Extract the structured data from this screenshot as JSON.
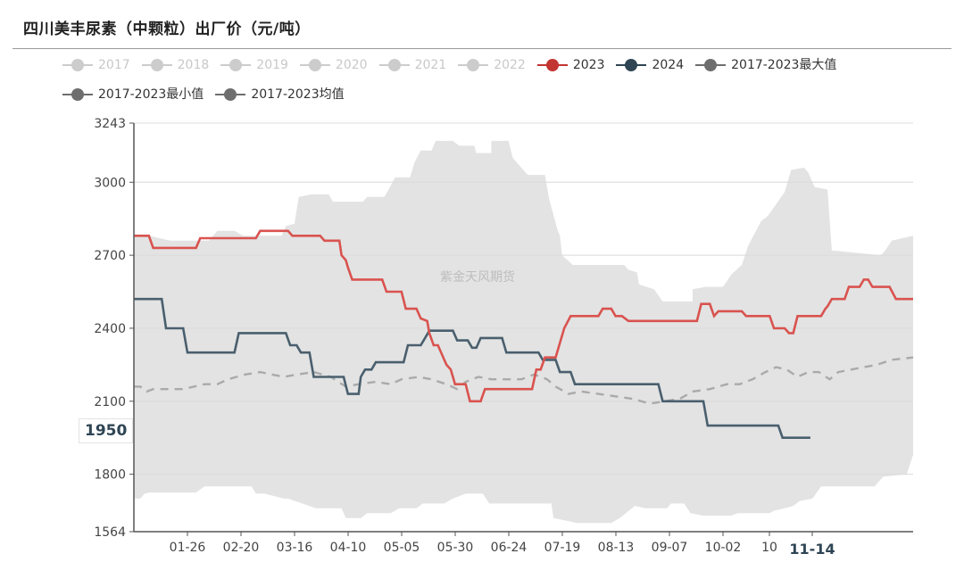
{
  "title": "四川美丰尿素（中颗粒）出厂价（元/吨）",
  "watermark": "紫金天风期货",
  "legend": [
    {
      "label": "2017",
      "color": "#cccccc",
      "active": false
    },
    {
      "label": "2018",
      "color": "#cccccc",
      "active": false
    },
    {
      "label": "2019",
      "color": "#cccccc",
      "active": false
    },
    {
      "label": "2020",
      "color": "#cccccc",
      "active": false
    },
    {
      "label": "2021",
      "color": "#cccccc",
      "active": false
    },
    {
      "label": "2022",
      "color": "#cccccc",
      "active": false
    },
    {
      "label": "2023",
      "color": "#c23531",
      "active": true
    },
    {
      "label": "2024",
      "color": "#2f4554",
      "active": true
    },
    {
      "label": "2017-2023最大值",
      "color": "#6e6e6e",
      "active": true
    },
    {
      "label": "2017-2023最小值",
      "color": "#6e6e6e",
      "active": true
    },
    {
      "label": "2017-2023均值",
      "color": "#6e6e6e",
      "active": true
    }
  ],
  "axis_pointer": {
    "y_label": "1950",
    "x_label": "11-14"
  },
  "chart_data": {
    "type": "line",
    "title": "四川美丰尿素（中颗粒）出厂价（元/吨）",
    "xlabel": "",
    "ylabel": "",
    "ylim": [
      1564,
      3243
    ],
    "yticks": [
      1564,
      1800,
      2100,
      2400,
      2700,
      3000,
      3243
    ],
    "xticks": [
      "01-26",
      "02-20",
      "03-16",
      "04-10",
      "05-05",
      "05-30",
      "06-24",
      "07-19",
      "08-13",
      "09-07",
      "10-02",
      "10",
      "11-14"
    ],
    "x_domain_days": [
      1,
      365
    ],
    "grid": true,
    "legend_position": "top",
    "colors": {
      "2023": "#d9534f",
      "2024": "#4a5f6e",
      "avg": "#aaaaaa",
      "band": "#e3e3e3"
    },
    "series": [
      {
        "name": "2023",
        "points": [
          [
            1,
            2780
          ],
          [
            8,
            2780
          ],
          [
            10,
            2730
          ],
          [
            30,
            2730
          ],
          [
            32,
            2770
          ],
          [
            58,
            2770
          ],
          [
            60,
            2800
          ],
          [
            73,
            2800
          ],
          [
            75,
            2780
          ],
          [
            88,
            2780
          ],
          [
            90,
            2760
          ],
          [
            97,
            2760
          ],
          [
            98,
            2700
          ],
          [
            100,
            2680
          ],
          [
            101,
            2650
          ],
          [
            103,
            2600
          ],
          [
            117,
            2600
          ],
          [
            119,
            2550
          ],
          [
            126,
            2550
          ],
          [
            128,
            2480
          ],
          [
            133,
            2480
          ],
          [
            135,
            2440
          ],
          [
            138,
            2430
          ],
          [
            139,
            2380
          ],
          [
            141,
            2330
          ],
          [
            143,
            2330
          ],
          [
            145,
            2290
          ],
          [
            147,
            2250
          ],
          [
            149,
            2230
          ],
          [
            151,
            2170
          ],
          [
            156,
            2170
          ],
          [
            158,
            2100
          ],
          [
            163,
            2100
          ],
          [
            165,
            2150
          ],
          [
            187,
            2150
          ],
          [
            189,
            2230
          ],
          [
            191,
            2230
          ],
          [
            193,
            2280
          ],
          [
            198,
            2280
          ],
          [
            202,
            2400
          ],
          [
            205,
            2450
          ],
          [
            218,
            2450
          ],
          [
            220,
            2480
          ],
          [
            224,
            2480
          ],
          [
            226,
            2450
          ],
          [
            229,
            2450
          ],
          [
            232,
            2430
          ],
          [
            264,
            2430
          ],
          [
            266,
            2500
          ],
          [
            270,
            2500
          ],
          [
            272,
            2450
          ],
          [
            274,
            2470
          ],
          [
            285,
            2470
          ],
          [
            287,
            2450
          ],
          [
            298,
            2450
          ],
          [
            300,
            2400
          ],
          [
            305,
            2400
          ],
          [
            307,
            2380
          ],
          [
            309,
            2380
          ],
          [
            311,
            2450
          ],
          [
            322,
            2450
          ],
          [
            324,
            2480
          ],
          [
            325,
            2490
          ],
          [
            327,
            2520
          ],
          [
            333,
            2520
          ],
          [
            335,
            2570
          ],
          [
            340,
            2570
          ],
          [
            342,
            2600
          ],
          [
            344,
            2600
          ],
          [
            346,
            2570
          ],
          [
            354,
            2570
          ],
          [
            357,
            2520
          ],
          [
            365,
            2520
          ]
        ]
      },
      {
        "name": "2024",
        "points": [
          [
            1,
            2520
          ],
          [
            14,
            2520
          ],
          [
            16,
            2400
          ],
          [
            24,
            2400
          ],
          [
            26,
            2300
          ],
          [
            48,
            2300
          ],
          [
            50,
            2380
          ],
          [
            72,
            2380
          ],
          [
            74,
            2330
          ],
          [
            77,
            2330
          ],
          [
            79,
            2300
          ],
          [
            83,
            2300
          ],
          [
            85,
            2200
          ],
          [
            99,
            2200
          ],
          [
            101,
            2130
          ],
          [
            106,
            2130
          ],
          [
            107,
            2200
          ],
          [
            109,
            2230
          ],
          [
            112,
            2230
          ],
          [
            114,
            2260
          ],
          [
            127,
            2260
          ],
          [
            129,
            2330
          ],
          [
            135,
            2330
          ],
          [
            137,
            2360
          ],
          [
            139,
            2390
          ],
          [
            150,
            2390
          ],
          [
            152,
            2350
          ],
          [
            157,
            2350
          ],
          [
            159,
            2320
          ],
          [
            161,
            2320
          ],
          [
            163,
            2360
          ],
          [
            173,
            2360
          ],
          [
            175,
            2300
          ],
          [
            190,
            2300
          ],
          [
            192,
            2270
          ],
          [
            198,
            2270
          ],
          [
            200,
            2220
          ],
          [
            205,
            2220
          ],
          [
            207,
            2170
          ],
          [
            246,
            2170
          ],
          [
            248,
            2100
          ],
          [
            267,
            2100
          ],
          [
            269,
            2000
          ],
          [
            302,
            2000
          ],
          [
            304,
            1950
          ],
          [
            317,
            1950
          ]
        ]
      },
      {
        "name": "2017-2023均值",
        "points": [
          [
            1,
            2160
          ],
          [
            4,
            2160
          ],
          [
            7,
            2140
          ],
          [
            10,
            2150
          ],
          [
            24,
            2150
          ],
          [
            29,
            2160
          ],
          [
            34,
            2170
          ],
          [
            40,
            2170
          ],
          [
            45,
            2190
          ],
          [
            53,
            2210
          ],
          [
            60,
            2220
          ],
          [
            71,
            2200
          ],
          [
            77,
            2210
          ],
          [
            85,
            2220
          ],
          [
            93,
            2200
          ],
          [
            100,
            2160
          ],
          [
            106,
            2170
          ],
          [
            114,
            2180
          ],
          [
            121,
            2170
          ],
          [
            126,
            2190
          ],
          [
            134,
            2200
          ],
          [
            140,
            2190
          ],
          [
            147,
            2170
          ],
          [
            152,
            2150
          ],
          [
            156,
            2180
          ],
          [
            162,
            2200
          ],
          [
            168,
            2190
          ],
          [
            175,
            2190
          ],
          [
            182,
            2190
          ],
          [
            188,
            2210
          ],
          [
            194,
            2190
          ],
          [
            198,
            2160
          ],
          [
            204,
            2130
          ],
          [
            210,
            2140
          ],
          [
            218,
            2130
          ],
          [
            226,
            2120
          ],
          [
            234,
            2110
          ],
          [
            242,
            2090
          ],
          [
            249,
            2100
          ],
          [
            256,
            2110
          ],
          [
            262,
            2140
          ],
          [
            270,
            2150
          ],
          [
            278,
            2170
          ],
          [
            284,
            2170
          ],
          [
            290,
            2190
          ],
          [
            296,
            2220
          ],
          [
            301,
            2240
          ],
          [
            306,
            2230
          ],
          [
            311,
            2200
          ],
          [
            316,
            2220
          ],
          [
            321,
            2220
          ],
          [
            326,
            2190
          ],
          [
            330,
            2220
          ],
          [
            336,
            2230
          ],
          [
            342,
            2240
          ],
          [
            348,
            2250
          ],
          [
            355,
            2270
          ],
          [
            365,
            2280
          ]
        ]
      }
    ],
    "band_max": [
      [
        1,
        2780
      ],
      [
        8,
        2780
      ],
      [
        18,
        2760
      ],
      [
        36,
        2760
      ],
      [
        40,
        2800
      ],
      [
        48,
        2800
      ],
      [
        52,
        2780
      ],
      [
        70,
        2780
      ],
      [
        72,
        2820
      ],
      [
        76,
        2830
      ],
      [
        78,
        2940
      ],
      [
        84,
        2950
      ],
      [
        92,
        2950
      ],
      [
        94,
        2920
      ],
      [
        108,
        2920
      ],
      [
        110,
        2940
      ],
      [
        118,
        2940
      ],
      [
        120,
        2970
      ],
      [
        123,
        3020
      ],
      [
        130,
        3020
      ],
      [
        132,
        3080
      ],
      [
        135,
        3130
      ],
      [
        140,
        3130
      ],
      [
        142,
        3170
      ],
      [
        150,
        3170
      ],
      [
        153,
        3150
      ],
      [
        160,
        3150
      ],
      [
        161,
        3120
      ],
      [
        168,
        3120
      ],
      [
        168,
        3170
      ],
      [
        176,
        3170
      ],
      [
        178,
        3100
      ],
      [
        181,
        3070
      ],
      [
        185,
        3030
      ],
      [
        193,
        3030
      ],
      [
        195,
        2930
      ],
      [
        199,
        2800
      ],
      [
        200,
        2780
      ],
      [
        201,
        2700
      ],
      [
        206,
        2660
      ],
      [
        230,
        2660
      ],
      [
        232,
        2640
      ],
      [
        236,
        2630
      ],
      [
        237,
        2580
      ],
      [
        244,
        2560
      ],
      [
        248,
        2510
      ],
      [
        262,
        2510
      ],
      [
        262,
        2560
      ],
      [
        268,
        2570
      ],
      [
        276,
        2570
      ],
      [
        277,
        2580
      ],
      [
        280,
        2620
      ],
      [
        285,
        2660
      ],
      [
        288,
        2740
      ],
      [
        294,
        2840
      ],
      [
        297,
        2860
      ],
      [
        305,
        2960
      ],
      [
        308,
        3050
      ],
      [
        314,
        3060
      ],
      [
        316,
        3040
      ],
      [
        319,
        2980
      ],
      [
        325,
        2970
      ],
      [
        327,
        2720
      ],
      [
        350,
        2700
      ],
      [
        352,
        2720
      ],
      [
        355,
        2760
      ],
      [
        365,
        2780
      ]
    ],
    "band_min": [
      [
        1,
        1700
      ],
      [
        4,
        1700
      ],
      [
        6,
        1720
      ],
      [
        8,
        1725
      ],
      [
        30,
        1725
      ],
      [
        34,
        1750
      ],
      [
        56,
        1750
      ],
      [
        58,
        1720
      ],
      [
        62,
        1720
      ],
      [
        71,
        1700
      ],
      [
        73,
        1700
      ],
      [
        86,
        1660
      ],
      [
        98,
        1660
      ],
      [
        100,
        1620
      ],
      [
        107,
        1620
      ],
      [
        110,
        1640
      ],
      [
        121,
        1640
      ],
      [
        125,
        1660
      ],
      [
        133,
        1660
      ],
      [
        136,
        1680
      ],
      [
        146,
        1680
      ],
      [
        150,
        1700
      ],
      [
        156,
        1720
      ],
      [
        164,
        1720
      ],
      [
        167,
        1680
      ],
      [
        196,
        1680
      ],
      [
        197,
        1620
      ],
      [
        208,
        1600
      ],
      [
        224,
        1600
      ],
      [
        228,
        1620
      ],
      [
        235,
        1670
      ],
      [
        240,
        1660
      ],
      [
        250,
        1660
      ],
      [
        252,
        1680
      ],
      [
        258,
        1680
      ],
      [
        261,
        1640
      ],
      [
        267,
        1630
      ],
      [
        270,
        1630
      ],
      [
        280,
        1630
      ],
      [
        283,
        1640
      ],
      [
        290,
        1640
      ],
      [
        298,
        1640
      ],
      [
        300,
        1650
      ],
      [
        305,
        1660
      ],
      [
        309,
        1670
      ],
      [
        312,
        1690
      ],
      [
        318,
        1700
      ],
      [
        322,
        1750
      ],
      [
        332,
        1750
      ],
      [
        334,
        1750
      ],
      [
        347,
        1750
      ],
      [
        351,
        1790
      ],
      [
        362,
        1800
      ],
      [
        365,
        1880
      ]
    ]
  }
}
